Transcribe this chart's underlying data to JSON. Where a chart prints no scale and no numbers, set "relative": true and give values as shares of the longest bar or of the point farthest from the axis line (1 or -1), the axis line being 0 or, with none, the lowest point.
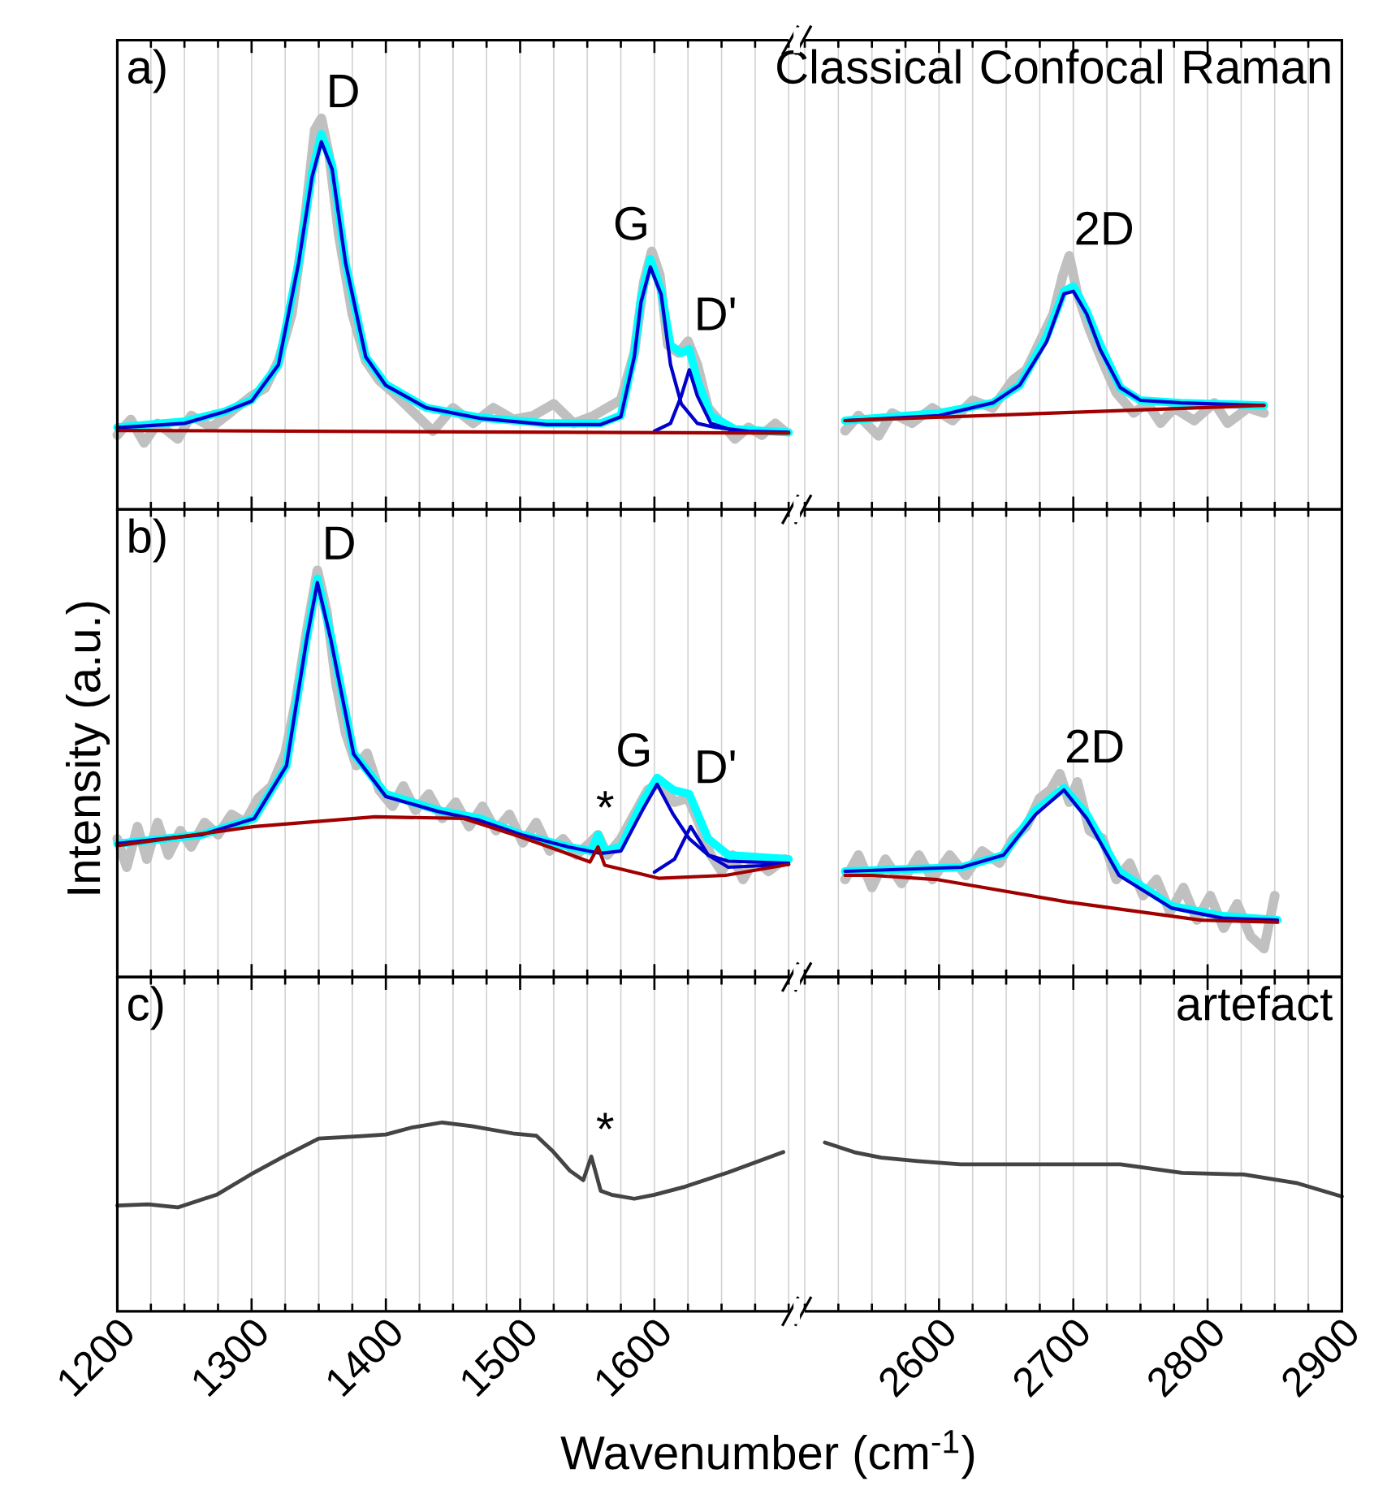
{
  "chart_data": [
    {
      "type": "line",
      "relative": true,
      "xlim": [
        1200,
        1700
      ],
      "xticks": [
        1200,
        1300,
        1400,
        1500,
        1600
      ],
      "grid": "x",
      "tick_labels": false,
      "annotations": [
        "a)",
        {
          "text": "D",
          "x": 1352,
          "y": 1.0
        },
        {
          "text": "G",
          "x": 1600,
          "y": 0.66
        },
        {
          "text": "D'",
          "x": 1626,
          "y": 0.43
        }
      ],
      "series": [
        {
          "color": "#c0c0c0",
          "x": [
            1200,
            1210,
            1220,
            1230,
            1245,
            1255,
            1270,
            1285,
            1300,
            1310,
            1320,
            1330,
            1340,
            1347,
            1352,
            1358,
            1365,
            1375,
            1385,
            1395,
            1405,
            1420,
            1435,
            1450,
            1465,
            1480,
            1495,
            1510,
            1525,
            1540,
            1555,
            1565,
            1575,
            1585,
            1592,
            1598,
            1604,
            1610,
            1618,
            1625,
            1632,
            1640,
            1650,
            1660,
            1670,
            1680,
            1690,
            1697
          ],
          "values": [
            0.19,
            0.23,
            0.17,
            0.22,
            0.18,
            0.24,
            0.21,
            0.25,
            0.29,
            0.31,
            0.38,
            0.5,
            0.75,
            0.97,
            1.0,
            0.9,
            0.7,
            0.5,
            0.38,
            0.33,
            0.3,
            0.25,
            0.2,
            0.26,
            0.22,
            0.26,
            0.23,
            0.24,
            0.27,
            0.22,
            0.24,
            0.26,
            0.28,
            0.4,
            0.58,
            0.66,
            0.6,
            0.42,
            0.4,
            0.43,
            0.37,
            0.26,
            0.22,
            0.18,
            0.21,
            0.19,
            0.22,
            0.2
          ]
        },
        {
          "color": "#00ffff",
          "x": [
            1200,
            1250,
            1280,
            1300,
            1320,
            1335,
            1345,
            1352,
            1360,
            1370,
            1385,
            1400,
            1430,
            1470,
            1520,
            1560,
            1575,
            1585,
            1590,
            1597,
            1605,
            1612,
            1620,
            1626,
            1632,
            1642,
            1660,
            1700
          ],
          "values": [
            0.21,
            0.225,
            0.25,
            0.28,
            0.37,
            0.63,
            0.86,
            0.96,
            0.88,
            0.63,
            0.39,
            0.32,
            0.26,
            0.235,
            0.22,
            0.22,
            0.24,
            0.4,
            0.54,
            0.64,
            0.56,
            0.42,
            0.4,
            0.41,
            0.33,
            0.24,
            0.205,
            0.197
          ]
        },
        {
          "color": "#0000cc",
          "x": [
            1200,
            1250,
            1280,
            1300,
            1320,
            1335,
            1345,
            1352,
            1360,
            1370,
            1385,
            1400,
            1430,
            1470,
            1520,
            1560,
            1575,
            1585,
            1590,
            1597,
            1605,
            1612,
            1620,
            1626,
            1632,
            1645,
            1670,
            1700
          ],
          "values": [
            0.209,
            0.22,
            0.25,
            0.277,
            0.37,
            0.63,
            0.85,
            0.94,
            0.87,
            0.63,
            0.39,
            0.317,
            0.26,
            0.233,
            0.217,
            0.217,
            0.237,
            0.39,
            0.53,
            0.62,
            0.55,
            0.37,
            0.27,
            0.245,
            0.22,
            0.21,
            0.2,
            0.197
          ]
        },
        {
          "color": "#0000cc",
          "x": [
            1600,
            1612,
            1620,
            1626,
            1632,
            1642,
            1660
          ],
          "values": [
            0.2,
            0.22,
            0.29,
            0.357,
            0.29,
            0.22,
            0.2
          ]
        },
        {
          "color": "#a00000",
          "x": [
            1200,
            1700
          ],
          "values": [
            0.202,
            0.195
          ]
        }
      ]
    },
    {
      "type": "line",
      "relative": true,
      "xlim": [
        2500,
        2900
      ],
      "xticks": [
        2600,
        2700,
        2800,
        2900
      ],
      "grid": "x",
      "tick_labels": false,
      "annotations": [
        "Classical Confocal Raman",
        {
          "text": "2D",
          "x": 2697,
          "y": 1.0
        }
      ],
      "series": [
        {
          "color": "#c0c0c0",
          "x": [
            2530,
            2540,
            2555,
            2565,
            2580,
            2595,
            2610,
            2625,
            2640,
            2655,
            2665,
            2675,
            2685,
            2692,
            2697,
            2703,
            2712,
            2722,
            2732,
            2745,
            2755,
            2765,
            2775,
            2790,
            2805,
            2815,
            2830,
            2842
          ],
          "values": [
            0.31,
            0.37,
            0.29,
            0.38,
            0.34,
            0.4,
            0.35,
            0.43,
            0.4,
            0.51,
            0.55,
            0.66,
            0.77,
            0.92,
            1.0,
            0.85,
            0.71,
            0.58,
            0.46,
            0.38,
            0.42,
            0.34,
            0.4,
            0.35,
            0.42,
            0.34,
            0.4,
            0.38
          ]
        },
        {
          "color": "#00ffff",
          "x": [
            2530,
            2600,
            2640,
            2660,
            2680,
            2693,
            2700,
            2710,
            2720,
            2735,
            2750,
            2780,
            2842
          ],
          "values": [
            0.35,
            0.38,
            0.42,
            0.49,
            0.68,
            0.86,
            0.88,
            0.78,
            0.65,
            0.48,
            0.43,
            0.42,
            0.41
          ]
        },
        {
          "color": "#0000cc",
          "x": [
            2530,
            2600,
            2640,
            2660,
            2680,
            2693,
            2700,
            2710,
            2720,
            2735,
            2750,
            2780,
            2842
          ],
          "values": [
            0.35,
            0.37,
            0.42,
            0.49,
            0.66,
            0.85,
            0.86,
            0.77,
            0.63,
            0.48,
            0.43,
            0.42,
            0.41
          ]
        },
        {
          "color": "#a00000",
          "x": [
            2530,
            2842
          ],
          "values": [
            0.35,
            0.41
          ]
        }
      ]
    },
    {
      "type": "line",
      "relative": true,
      "xlim": [
        1200,
        1700
      ],
      "xticks": [
        1200,
        1300,
        1400,
        1500,
        1600
      ],
      "grid": "x",
      "tick_labels": false,
      "ylabel": "Intensity (a.u.)",
      "annotations": [
        "b)",
        {
          "text": "D",
          "x": 1349,
          "y": 1.0
        },
        {
          "text": "*",
          "x": 1553,
          "y": 0.35
        },
        {
          "text": "G",
          "x": 1602,
          "y": 0.49
        },
        {
          "text": "D'",
          "x": 1626,
          "y": 0.45
        }
      ],
      "series": [
        {
          "color": "#c0c0c0",
          "x": [
            1200,
            1207,
            1215,
            1222,
            1230,
            1238,
            1247,
            1255,
            1265,
            1275,
            1285,
            1295,
            1305,
            1315,
            1325,
            1333,
            1341,
            1349,
            1356,
            1363,
            1370,
            1378,
            1386,
            1395,
            1405,
            1413,
            1422,
            1432,
            1442,
            1452,
            1462,
            1472,
            1482,
            1492,
            1502,
            1512,
            1522,
            1532,
            1542,
            1552,
            1558,
            1565,
            1575,
            1585,
            1595,
            1605,
            1615,
            1625,
            1633,
            1642,
            1650,
            1658,
            1666,
            1675,
            1685,
            1697
          ],
          "values": [
            0.34,
            0.27,
            0.37,
            0.29,
            0.38,
            0.3,
            0.36,
            0.32,
            0.38,
            0.35,
            0.4,
            0.38,
            0.44,
            0.47,
            0.55,
            0.68,
            0.85,
            1.0,
            0.9,
            0.72,
            0.6,
            0.52,
            0.55,
            0.46,
            0.42,
            0.47,
            0.41,
            0.45,
            0.39,
            0.43,
            0.37,
            0.42,
            0.36,
            0.4,
            0.33,
            0.38,
            0.31,
            0.34,
            0.3,
            0.33,
            0.35,
            0.3,
            0.34,
            0.4,
            0.46,
            0.48,
            0.43,
            0.44,
            0.38,
            0.3,
            0.26,
            0.3,
            0.24,
            0.29,
            0.26,
            0.29
          ]
        },
        {
          "color": "#00ffff",
          "x": [
            1200,
            1263,
            1302,
            1326,
            1341,
            1349,
            1359,
            1376,
            1400,
            1439,
            1470,
            1501,
            1536,
            1553,
            1558,
            1563,
            1575,
            1591,
            1602,
            1614,
            1626,
            1640,
            1655,
            1700
          ],
          "values": [
            0.328,
            0.35,
            0.39,
            0.52,
            0.83,
            0.98,
            0.84,
            0.55,
            0.45,
            0.41,
            0.39,
            0.35,
            0.32,
            0.31,
            0.35,
            0.31,
            0.32,
            0.43,
            0.49,
            0.46,
            0.45,
            0.34,
            0.3,
            0.29
          ]
        },
        {
          "color": "#0000cc",
          "x": [
            1200,
            1263,
            1302,
            1326,
            1341,
            1349,
            1359,
            1376,
            1400,
            1439,
            1470,
            1501,
            1536,
            1560,
            1575,
            1591,
            1602,
            1614,
            1626,
            1640,
            1655,
            1700
          ],
          "values": [
            0.328,
            0.35,
            0.39,
            0.52,
            0.83,
            0.97,
            0.83,
            0.548,
            0.444,
            0.407,
            0.385,
            0.35,
            0.32,
            0.304,
            0.31,
            0.41,
            0.474,
            0.4,
            0.34,
            0.3,
            0.285,
            0.28
          ]
        },
        {
          "color": "#0000cc",
          "x": [
            1600,
            1615,
            1627,
            1640,
            1655,
            1700
          ],
          "values": [
            0.258,
            0.29,
            0.37,
            0.3,
            0.27,
            0.277
          ]
        },
        {
          "color": "#a00000",
          "x": [
            1200,
            1302,
            1392,
            1458,
            1501,
            1530,
            1552,
            1558,
            1563,
            1603,
            1653,
            1700
          ],
          "values": [
            0.323,
            0.37,
            0.394,
            0.39,
            0.344,
            0.31,
            0.283,
            0.32,
            0.275,
            0.243,
            0.25,
            0.277
          ]
        }
      ]
    },
    {
      "type": "line",
      "relative": true,
      "xlim": [
        2500,
        2900
      ],
      "xticks": [
        2600,
        2700,
        2800,
        2900
      ],
      "grid": "x",
      "tick_labels": false,
      "annotations": [
        {
          "text": "2D",
          "x": 2690,
          "y": 1.0
        }
      ],
      "series": [
        {
          "color": "#c0c0c0",
          "x": [
            2530,
            2540,
            2550,
            2560,
            2572,
            2585,
            2595,
            2608,
            2620,
            2632,
            2645,
            2655,
            2665,
            2675,
            2683,
            2690,
            2697,
            2703,
            2712,
            2722,
            2732,
            2742,
            2752,
            2762,
            2772,
            2782,
            2792,
            2802,
            2812,
            2822,
            2832,
            2842,
            2850
          ],
          "values": [
            0.48,
            0.6,
            0.44,
            0.58,
            0.46,
            0.6,
            0.48,
            0.6,
            0.5,
            0.62,
            0.56,
            0.68,
            0.74,
            0.88,
            0.92,
            1.0,
            0.86,
            0.96,
            0.72,
            0.68,
            0.48,
            0.56,
            0.4,
            0.48,
            0.32,
            0.44,
            0.28,
            0.4,
            0.24,
            0.36,
            0.2,
            0.14,
            0.4
          ]
        },
        {
          "color": "#00ffff",
          "x": [
            2530,
            2617,
            2648,
            2672,
            2693,
            2710,
            2734,
            2773,
            2811,
            2852
          ],
          "values": [
            0.52,
            0.54,
            0.6,
            0.82,
            0.93,
            0.8,
            0.52,
            0.35,
            0.3,
            0.28
          ]
        },
        {
          "color": "#0000cc",
          "x": [
            2530,
            2617,
            2648,
            2672,
            2693,
            2710,
            2734,
            2773,
            2811,
            2852
          ],
          "values": [
            0.52,
            0.54,
            0.6,
            0.8,
            0.92,
            0.78,
            0.5,
            0.34,
            0.29,
            0.28
          ]
        },
        {
          "color": "#a00000",
          "x": [
            2530,
            2550,
            2598,
            2695,
            2795,
            2852
          ],
          "values": [
            0.5,
            0.5,
            0.48,
            0.37,
            0.28,
            0.27
          ]
        }
      ]
    },
    {
      "type": "line",
      "relative": true,
      "xlim": [
        1200,
        1700
      ],
      "xticks": [
        1200,
        1300,
        1400,
        1500,
        1600
      ],
      "grid": "x",
      "tick_labels": "x",
      "xlabel": "Wavenumber (cm$^{-1}$)",
      "annotations": [
        "c)",
        {
          "text": "*",
          "x": 1553,
          "y": 0.82
        }
      ],
      "series": [
        {
          "color": "#444444",
          "x": [
            1200,
            1223,
            1245,
            1274,
            1299,
            1324,
            1350,
            1382,
            1400,
            1420,
            1442,
            1464,
            1496,
            1512,
            1524,
            1537,
            1547,
            1553,
            1560,
            1568,
            1585,
            1600,
            1623,
            1655,
            1696
          ],
          "values": [
            0.56,
            0.566,
            0.55,
            0.617,
            0.723,
            0.82,
            0.915,
            0.928,
            0.936,
            0.974,
            1.0,
            0.98,
            0.94,
            0.93,
            0.85,
            0.745,
            0.694,
            0.82,
            0.638,
            0.617,
            0.596,
            0.617,
            0.66,
            0.736,
            0.843
          ]
        }
      ]
    },
    {
      "type": "line",
      "relative": true,
      "xlim": [
        2500,
        2900
      ],
      "xticks": [
        2600,
        2700,
        2800,
        2900
      ],
      "grid": "x",
      "tick_labels": "x",
      "annotations": [
        "artefact"
      ],
      "series": [
        {
          "color": "#444444",
          "x": [
            2515,
            2538,
            2557,
            2584,
            2616,
            2682,
            2735,
            2781,
            2827,
            2866,
            2900
          ],
          "values": [
            1.0,
            0.94,
            0.91,
            0.89,
            0.87,
            0.87,
            0.87,
            0.82,
            0.81,
            0.76,
            0.68
          ]
        }
      ]
    }
  ]
}
